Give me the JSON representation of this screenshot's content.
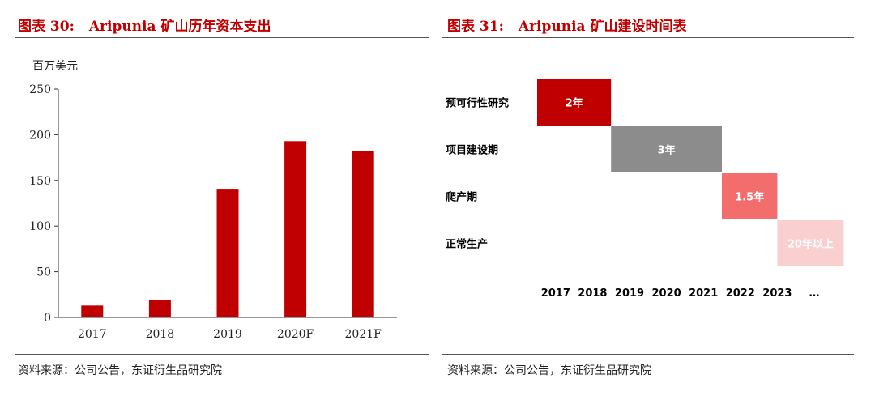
{
  "left": {
    "title_label": "图表 30:",
    "title_text": "Aripunia 矿山历年资本支出",
    "source": "资料来源：公司公告，东证衍生品研究院"
  },
  "right": {
    "title_label": "图表 31:",
    "title_text": "Aripunia 矿山建设时间表",
    "source": "资料来源：公司公告，东证衍生品研究院"
  },
  "chart_data": [
    {
      "type": "bar",
      "title": "Aripunia 矿山历年资本支出",
      "ylabel": "百万美元",
      "categories": [
        "2017",
        "2018",
        "2019",
        "2020F",
        "2021F"
      ],
      "values": [
        13,
        19,
        140,
        193,
        182
      ],
      "ylim": [
        0,
        250
      ],
      "yticks": [
        0,
        50,
        100,
        150,
        200,
        250
      ],
      "color": "#c00000",
      "grid": false
    },
    {
      "type": "gantt",
      "title": "Aripunia 矿山建设时间表",
      "x_labels": [
        "2017",
        "2018",
        "2019",
        "2020",
        "2021",
        "2022",
        "2023",
        "…"
      ],
      "tasks": [
        {
          "label": "预可行性研究",
          "start": 0,
          "duration": 2,
          "text": "2年",
          "color": "#c00000"
        },
        {
          "label": "项目建设期",
          "start": 2,
          "duration": 3,
          "text": "3年",
          "color": "#8c8c8c"
        },
        {
          "label": "爬产期",
          "start": 5,
          "duration": 1.5,
          "text": "1.5年",
          "color": "#f36d6d"
        },
        {
          "label": "正常生产",
          "start": 6.5,
          "duration": 1.8,
          "text": "20年以上",
          "color": "#f9cfd0"
        }
      ]
    }
  ]
}
